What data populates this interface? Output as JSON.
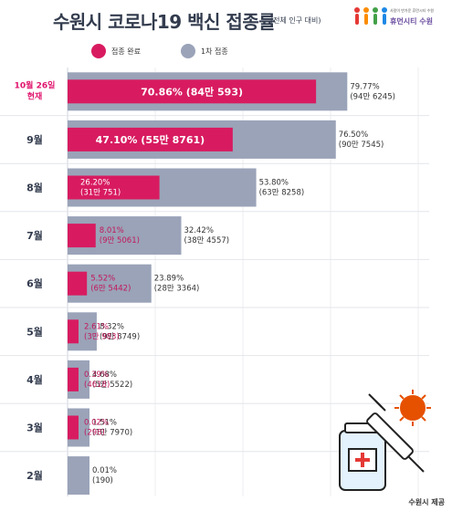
{
  "header": {
    "title": "수원시 코로나19 백신 접종률",
    "subtitle": "(전체 인구 대비)",
    "logo_text": "휴먼시티 수원",
    "logo_tagline": "사람이 반가운 휴먼시티 수원"
  },
  "legend": [
    {
      "label": "접종 완료",
      "color": "#d81b60"
    },
    {
      "label": "1차 접종",
      "color": "#9aa3b8"
    }
  ],
  "colors": {
    "complete": "#d81b60",
    "first_dose": "#9aa3b8",
    "label_highlight": "#e0156e",
    "text": "#333c4e"
  },
  "chart_data": {
    "type": "bar",
    "orientation": "horizontal",
    "title": "수원시 코로나19 백신 접종률",
    "subtitle": "(전체 인구 대비)",
    "unit": "%",
    "xlim": [
      0,
      100
    ],
    "grid": true,
    "legend_position": "top",
    "categories": [
      "10월 26일 현재",
      "9월",
      "8월",
      "7월",
      "6월",
      "5월",
      "4월",
      "3월",
      "2월"
    ],
    "series": [
      {
        "name": "접종 완료",
        "values": [
          70.86,
          47.1,
          26.2,
          8.01,
          5.52,
          2.61,
          0.39,
          0.02,
          0
        ],
        "labels": [
          "70.86% (84만 593)",
          "47.10% (55만 8761)",
          "26.20% (31만 751)",
          "8.01% (9만 5061)",
          "5.52% (6만 5442)",
          "2.61% (3만 983)",
          "0.39% (4618)",
          "0.02% (298)",
          ""
        ]
      },
      {
        "name": "1차 접종",
        "values": [
          79.77,
          76.5,
          53.8,
          32.42,
          23.89,
          8.32,
          4.68,
          1.51,
          0.01
        ],
        "labels": [
          "79.77% (94만 6245)",
          "76.50% (90만 7545)",
          "53.80% (63만 8258)",
          "32.42% (38만 4557)",
          "23.89% (28만 3364)",
          "8.32% (9만 8749)",
          "4.68% (5만 5522)",
          "1.51% (1만 7970)",
          "0.01% (190)"
        ]
      }
    ]
  },
  "footer": {
    "source": "수원시 제공"
  }
}
